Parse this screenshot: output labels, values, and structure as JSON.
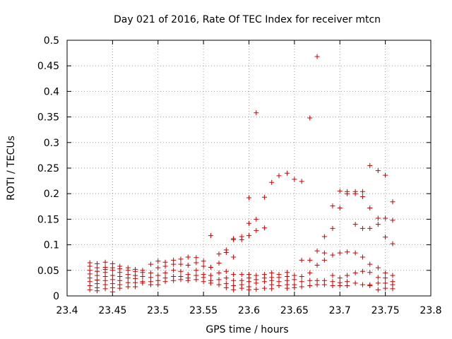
{
  "chart_data": {
    "type": "scatter",
    "title": "Day 021 of 2016, Rate Of TEC Index for receiver mtcn",
    "xlabel": "GPS time / hours",
    "ylabel": "ROTI / TECUs",
    "xlim": [
      23.4,
      23.8
    ],
    "ylim": [
      0,
      0.5
    ],
    "xticks": [
      23.4,
      23.45,
      23.5,
      23.55,
      23.6,
      23.65,
      23.7,
      23.75,
      23.8
    ],
    "xtick_labels": [
      "23.4",
      "23.45",
      "23.5",
      "23.55",
      "23.6",
      "23.65",
      "23.7",
      "23.75",
      "23.8"
    ],
    "yticks": [
      0,
      0.05,
      0.1,
      0.15,
      0.2,
      0.25,
      0.3,
      0.35,
      0.4,
      0.45,
      0.5
    ],
    "ytick_labels": [
      "0",
      "0.05",
      "0.1",
      "0.15",
      "0.2",
      "0.25",
      "0.3",
      "0.35",
      "0.4",
      "0.45",
      "0.5"
    ],
    "grid": true,
    "marker": "plus",
    "color": "#cc0000",
    "series": [
      {
        "name": "ROTI",
        "points": [
          [
            23.425,
            0.065
          ],
          [
            23.425,
            0.058
          ],
          [
            23.425,
            0.05
          ],
          [
            23.425,
            0.043
          ],
          [
            23.425,
            0.035
          ],
          [
            23.425,
            0.028
          ],
          [
            23.425,
            0.02
          ],
          [
            23.425,
            0.012
          ],
          [
            23.433,
            0.063
          ],
          [
            23.433,
            0.055
          ],
          [
            23.433,
            0.048
          ],
          [
            23.433,
            0.04
          ],
          [
            23.433,
            0.031
          ],
          [
            23.433,
            0.024
          ],
          [
            23.433,
            0.016
          ],
          [
            23.433,
            0.01
          ],
          [
            23.442,
            0.066
          ],
          [
            23.442,
            0.056
          ],
          [
            23.442,
            0.052
          ],
          [
            23.442,
            0.046
          ],
          [
            23.442,
            0.038
          ],
          [
            23.442,
            0.03
          ],
          [
            23.442,
            0.022
          ],
          [
            23.442,
            0.014
          ],
          [
            23.45,
            0.063
          ],
          [
            23.45,
            0.055
          ],
          [
            23.45,
            0.05
          ],
          [
            23.45,
            0.04
          ],
          [
            23.45,
            0.032
          ],
          [
            23.45,
            0.024
          ],
          [
            23.45,
            0.016
          ],
          [
            23.45,
            0.008
          ],
          [
            23.458,
            0.058
          ],
          [
            23.458,
            0.053
          ],
          [
            23.458,
            0.046
          ],
          [
            23.458,
            0.038
          ],
          [
            23.458,
            0.03
          ],
          [
            23.458,
            0.022
          ],
          [
            23.458,
            0.015
          ],
          [
            23.467,
            0.055
          ],
          [
            23.467,
            0.05
          ],
          [
            23.467,
            0.042
          ],
          [
            23.467,
            0.035
          ],
          [
            23.467,
            0.026
          ],
          [
            23.467,
            0.018
          ],
          [
            23.475,
            0.052
          ],
          [
            23.475,
            0.048
          ],
          [
            23.475,
            0.04
          ],
          [
            23.475,
            0.034
          ],
          [
            23.475,
            0.026
          ],
          [
            23.475,
            0.018
          ],
          [
            23.483,
            0.05
          ],
          [
            23.483,
            0.046
          ],
          [
            23.483,
            0.038
          ],
          [
            23.483,
            0.028
          ],
          [
            23.483,
            0.025
          ],
          [
            23.492,
            0.062
          ],
          [
            23.492,
            0.045
          ],
          [
            23.492,
            0.036
          ],
          [
            23.492,
            0.028
          ],
          [
            23.492,
            0.022
          ],
          [
            23.5,
            0.068
          ],
          [
            23.5,
            0.055
          ],
          [
            23.5,
            0.04
          ],
          [
            23.5,
            0.03
          ],
          [
            23.5,
            0.022
          ],
          [
            23.508,
            0.066
          ],
          [
            23.508,
            0.058
          ],
          [
            23.508,
            0.045
          ],
          [
            23.508,
            0.035
          ],
          [
            23.508,
            0.028
          ],
          [
            23.517,
            0.07
          ],
          [
            23.517,
            0.062
          ],
          [
            23.517,
            0.05
          ],
          [
            23.517,
            0.038
          ],
          [
            23.517,
            0.03
          ],
          [
            23.525,
            0.072
          ],
          [
            23.525,
            0.062
          ],
          [
            23.525,
            0.048
          ],
          [
            23.525,
            0.038
          ],
          [
            23.525,
            0.032
          ],
          [
            23.533,
            0.076
          ],
          [
            23.533,
            0.06
          ],
          [
            23.533,
            0.042
          ],
          [
            23.533,
            0.035
          ],
          [
            23.533,
            0.03
          ],
          [
            23.542,
            0.075
          ],
          [
            23.542,
            0.065
          ],
          [
            23.542,
            0.05
          ],
          [
            23.542,
            0.04
          ],
          [
            23.542,
            0.032
          ],
          [
            23.55,
            0.068
          ],
          [
            23.55,
            0.058
          ],
          [
            23.55,
            0.042
          ],
          [
            23.55,
            0.036
          ],
          [
            23.55,
            0.028
          ],
          [
            23.558,
            0.118
          ],
          [
            23.558,
            0.056
          ],
          [
            23.558,
            0.04
          ],
          [
            23.558,
            0.03
          ],
          [
            23.558,
            0.025
          ],
          [
            23.567,
            0.082
          ],
          [
            23.567,
            0.064
          ],
          [
            23.567,
            0.045
          ],
          [
            23.567,
            0.032
          ],
          [
            23.567,
            0.022
          ],
          [
            23.575,
            0.09
          ],
          [
            23.575,
            0.085
          ],
          [
            23.575,
            0.048
          ],
          [
            23.575,
            0.035
          ],
          [
            23.575,
            0.024
          ],
          [
            23.575,
            0.016
          ],
          [
            23.583,
            0.112
          ],
          [
            23.583,
            0.11
          ],
          [
            23.583,
            0.076
          ],
          [
            23.583,
            0.042
          ],
          [
            23.583,
            0.03
          ],
          [
            23.583,
            0.02
          ],
          [
            23.583,
            0.012
          ],
          [
            23.592,
            0.116
          ],
          [
            23.592,
            0.11
          ],
          [
            23.592,
            0.042
          ],
          [
            23.592,
            0.03
          ],
          [
            23.592,
            0.022
          ],
          [
            23.592,
            0.015
          ],
          [
            23.6,
            0.192
          ],
          [
            23.6,
            0.142
          ],
          [
            23.6,
            0.118
          ],
          [
            23.6,
            0.042
          ],
          [
            23.6,
            0.035
          ],
          [
            23.6,
            0.028
          ],
          [
            23.6,
            0.018
          ],
          [
            23.6,
            0.012
          ],
          [
            23.608,
            0.358
          ],
          [
            23.608,
            0.15
          ],
          [
            23.608,
            0.128
          ],
          [
            23.608,
            0.04
          ],
          [
            23.608,
            0.032
          ],
          [
            23.608,
            0.025
          ],
          [
            23.608,
            0.013
          ],
          [
            23.617,
            0.193
          ],
          [
            23.617,
            0.133
          ],
          [
            23.617,
            0.042
          ],
          [
            23.617,
            0.035
          ],
          [
            23.617,
            0.028
          ],
          [
            23.617,
            0.015
          ],
          [
            23.625,
            0.222
          ],
          [
            23.625,
            0.045
          ],
          [
            23.625,
            0.036
          ],
          [
            23.625,
            0.03
          ],
          [
            23.625,
            0.022
          ],
          [
            23.625,
            0.014
          ],
          [
            23.633,
            0.235
          ],
          [
            23.633,
            0.042
          ],
          [
            23.633,
            0.036
          ],
          [
            23.633,
            0.028
          ],
          [
            23.633,
            0.02
          ],
          [
            23.642,
            0.24
          ],
          [
            23.642,
            0.046
          ],
          [
            23.642,
            0.038
          ],
          [
            23.642,
            0.03
          ],
          [
            23.642,
            0.022
          ],
          [
            23.642,
            0.015
          ],
          [
            23.65,
            0.228
          ],
          [
            23.65,
            0.04
          ],
          [
            23.65,
            0.032
          ],
          [
            23.65,
            0.022
          ],
          [
            23.65,
            0.016
          ],
          [
            23.658,
            0.224
          ],
          [
            23.658,
            0.07
          ],
          [
            23.658,
            0.038
          ],
          [
            23.658,
            0.028
          ],
          [
            23.658,
            0.018
          ],
          [
            23.667,
            0.348
          ],
          [
            23.667,
            0.07
          ],
          [
            23.667,
            0.045
          ],
          [
            23.667,
            0.03
          ],
          [
            23.667,
            0.02
          ],
          [
            23.675,
            0.468
          ],
          [
            23.675,
            0.088
          ],
          [
            23.675,
            0.06
          ],
          [
            23.675,
            0.03
          ],
          [
            23.675,
            0.022
          ],
          [
            23.683,
            0.116
          ],
          [
            23.683,
            0.084
          ],
          [
            23.683,
            0.07
          ],
          [
            23.683,
            0.03
          ],
          [
            23.683,
            0.022
          ],
          [
            23.692,
            0.176
          ],
          [
            23.692,
            0.132
          ],
          [
            23.692,
            0.08
          ],
          [
            23.692,
            0.04
          ],
          [
            23.692,
            0.028
          ],
          [
            23.692,
            0.02
          ],
          [
            23.7,
            0.205
          ],
          [
            23.7,
            0.172
          ],
          [
            23.7,
            0.084
          ],
          [
            23.7,
            0.035
          ],
          [
            23.7,
            0.026
          ],
          [
            23.7,
            0.02
          ],
          [
            23.708,
            0.204
          ],
          [
            23.708,
            0.2
          ],
          [
            23.708,
            0.086
          ],
          [
            23.708,
            0.04
          ],
          [
            23.708,
            0.028
          ],
          [
            23.708,
            0.02
          ],
          [
            23.717,
            0.204
          ],
          [
            23.717,
            0.2
          ],
          [
            23.717,
            0.14
          ],
          [
            23.717,
            0.084
          ],
          [
            23.717,
            0.045
          ],
          [
            23.717,
            0.025
          ],
          [
            23.725,
            0.204
          ],
          [
            23.725,
            0.194
          ],
          [
            23.725,
            0.132
          ],
          [
            23.725,
            0.076
          ],
          [
            23.725,
            0.048
          ],
          [
            23.725,
            0.022
          ],
          [
            23.733,
            0.255
          ],
          [
            23.733,
            0.172
          ],
          [
            23.733,
            0.132
          ],
          [
            23.733,
            0.062
          ],
          [
            23.733,
            0.046
          ],
          [
            23.733,
            0.022
          ],
          [
            23.733,
            0.02
          ],
          [
            23.742,
            0.245
          ],
          [
            23.742,
            0.152
          ],
          [
            23.742,
            0.14
          ],
          [
            23.742,
            0.055
          ],
          [
            23.742,
            0.036
          ],
          [
            23.742,
            0.025
          ],
          [
            23.742,
            0.012
          ],
          [
            23.75,
            0.236
          ],
          [
            23.75,
            0.152
          ],
          [
            23.75,
            0.115
          ],
          [
            23.75,
            0.045
          ],
          [
            23.75,
            0.035
          ],
          [
            23.75,
            0.025
          ],
          [
            23.75,
            0.015
          ],
          [
            23.758,
            0.184
          ],
          [
            23.758,
            0.148
          ],
          [
            23.758,
            0.102
          ],
          [
            23.758,
            0.04
          ],
          [
            23.758,
            0.028
          ],
          [
            23.758,
            0.022
          ],
          [
            23.758,
            0.014
          ]
        ]
      }
    ]
  }
}
